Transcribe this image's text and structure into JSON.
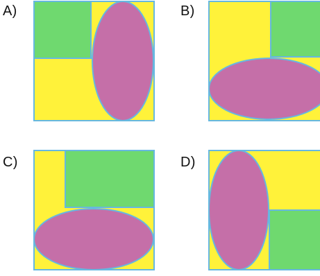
{
  "options": [
    {
      "label": "A)"
    },
    {
      "label": "B)"
    },
    {
      "label": "C)"
    },
    {
      "label": "D)"
    }
  ],
  "colors": {
    "yellow": "#fff23a",
    "green": "#6fd96f",
    "pink": "#c56fa8",
    "outline": "#66b8e0"
  }
}
